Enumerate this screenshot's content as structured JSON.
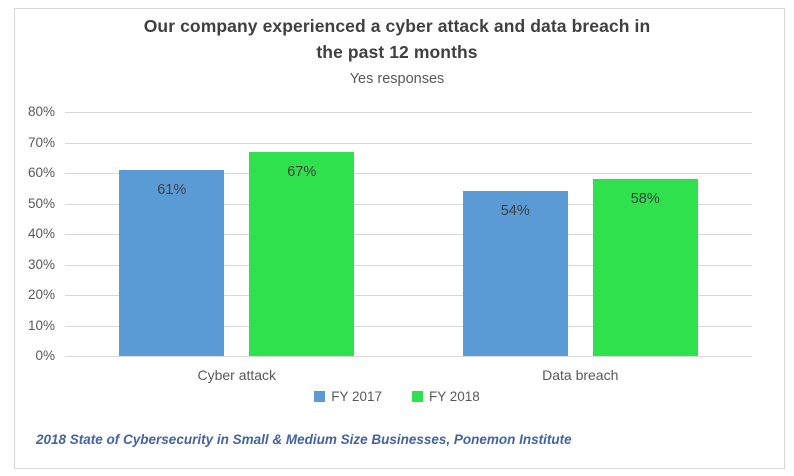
{
  "window": {
    "background": "#FFFFFF",
    "frame_border_color": "#D7D7D7"
  },
  "chart": {
    "title_line1": "Our company experienced a cyber attack and data breach in",
    "title_line2": "the past 12 months",
    "subtitle": "Yes responses"
  },
  "chart_data": {
    "type": "bar",
    "title": "Our company experienced a cyber attack and data breach in the past 12 months",
    "subtitle": "Yes responses",
    "categories": [
      "Cyber attack",
      "Data breach"
    ],
    "series": [
      {
        "name": "FY 2017",
        "color": "#5B9BD5",
        "values": [
          61,
          54
        ]
      },
      {
        "name": "FY 2018",
        "color": "#2EE14D",
        "values": [
          67,
          58
        ]
      }
    ],
    "data_labels": [
      [
        "61%",
        "54%"
      ],
      [
        "67%",
        "58%"
      ]
    ],
    "value_suffix": "%",
    "ylim": [
      0,
      80
    ],
    "ytick_step": 10,
    "ytick_labels": [
      "0%",
      "10%",
      "20%",
      "30%",
      "40%",
      "50%",
      "60%",
      "70%",
      "80%"
    ],
    "grid": true,
    "gridline_color": "#D9D9D9",
    "legend_position": "bottom",
    "legend_entries": [
      "FY 2017",
      "FY 2018"
    ],
    "data_label_position": "inside-top",
    "data_label_color": "#404040"
  },
  "footer": {
    "source": "2018 State of Cybersecurity in Small & Medium Size Businesses, Ponemon Institute",
    "color": "#44639F"
  }
}
